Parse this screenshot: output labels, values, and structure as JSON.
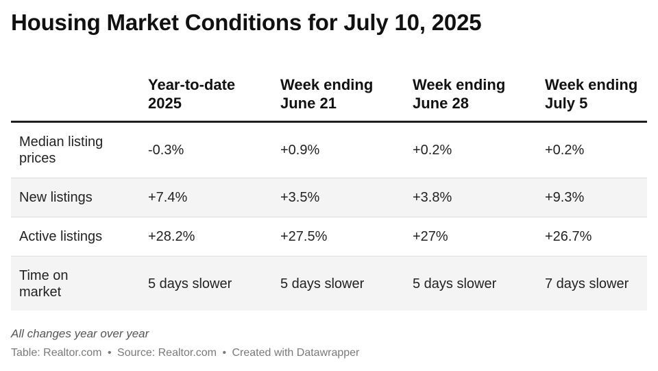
{
  "title": "Housing Market Conditions for July 10, 2025",
  "chart_data": {
    "type": "table",
    "title": "Housing Market Conditions for July 10, 2025",
    "columns": [
      {
        "line1": "Year-to-date",
        "line2": "2025"
      },
      {
        "line1": "Week ending",
        "line2": "June 21"
      },
      {
        "line1": "Week ending",
        "line2": "June 28"
      },
      {
        "line1": "Week ending",
        "line2": "July 5"
      }
    ],
    "rows": [
      {
        "label_line1": "Median listing",
        "label_line2": "prices",
        "cells": [
          "-0.3%",
          "+0.9%",
          "+0.2%",
          "+0.2%"
        ]
      },
      {
        "label_line1": "New listings",
        "label_line2": "",
        "cells": [
          "+7.4%",
          "+3.5%",
          "+3.8%",
          "+9.3%"
        ]
      },
      {
        "label_line1": "Active listings",
        "label_line2": "",
        "cells": [
          "+28.2%",
          "+27.5%",
          "+27%",
          "+26.7%"
        ]
      },
      {
        "label_line1": "Time on",
        "label_line2": "market",
        "cells": [
          "5 days slower",
          "5 days slower",
          "5 days slower",
          "7 days slower"
        ]
      }
    ]
  },
  "note": "All changes year over year",
  "footer": {
    "table_credit": "Table: Realtor.com",
    "source": "Source: Realtor.com",
    "created_with": "Created with Datawrapper",
    "separator": "•"
  },
  "colors": {
    "header_rule": "#1f1f1f",
    "row_shade": "#f4f4f4",
    "row_divider": "#dcdcdc",
    "footer_text": "#7a7a7a"
  }
}
